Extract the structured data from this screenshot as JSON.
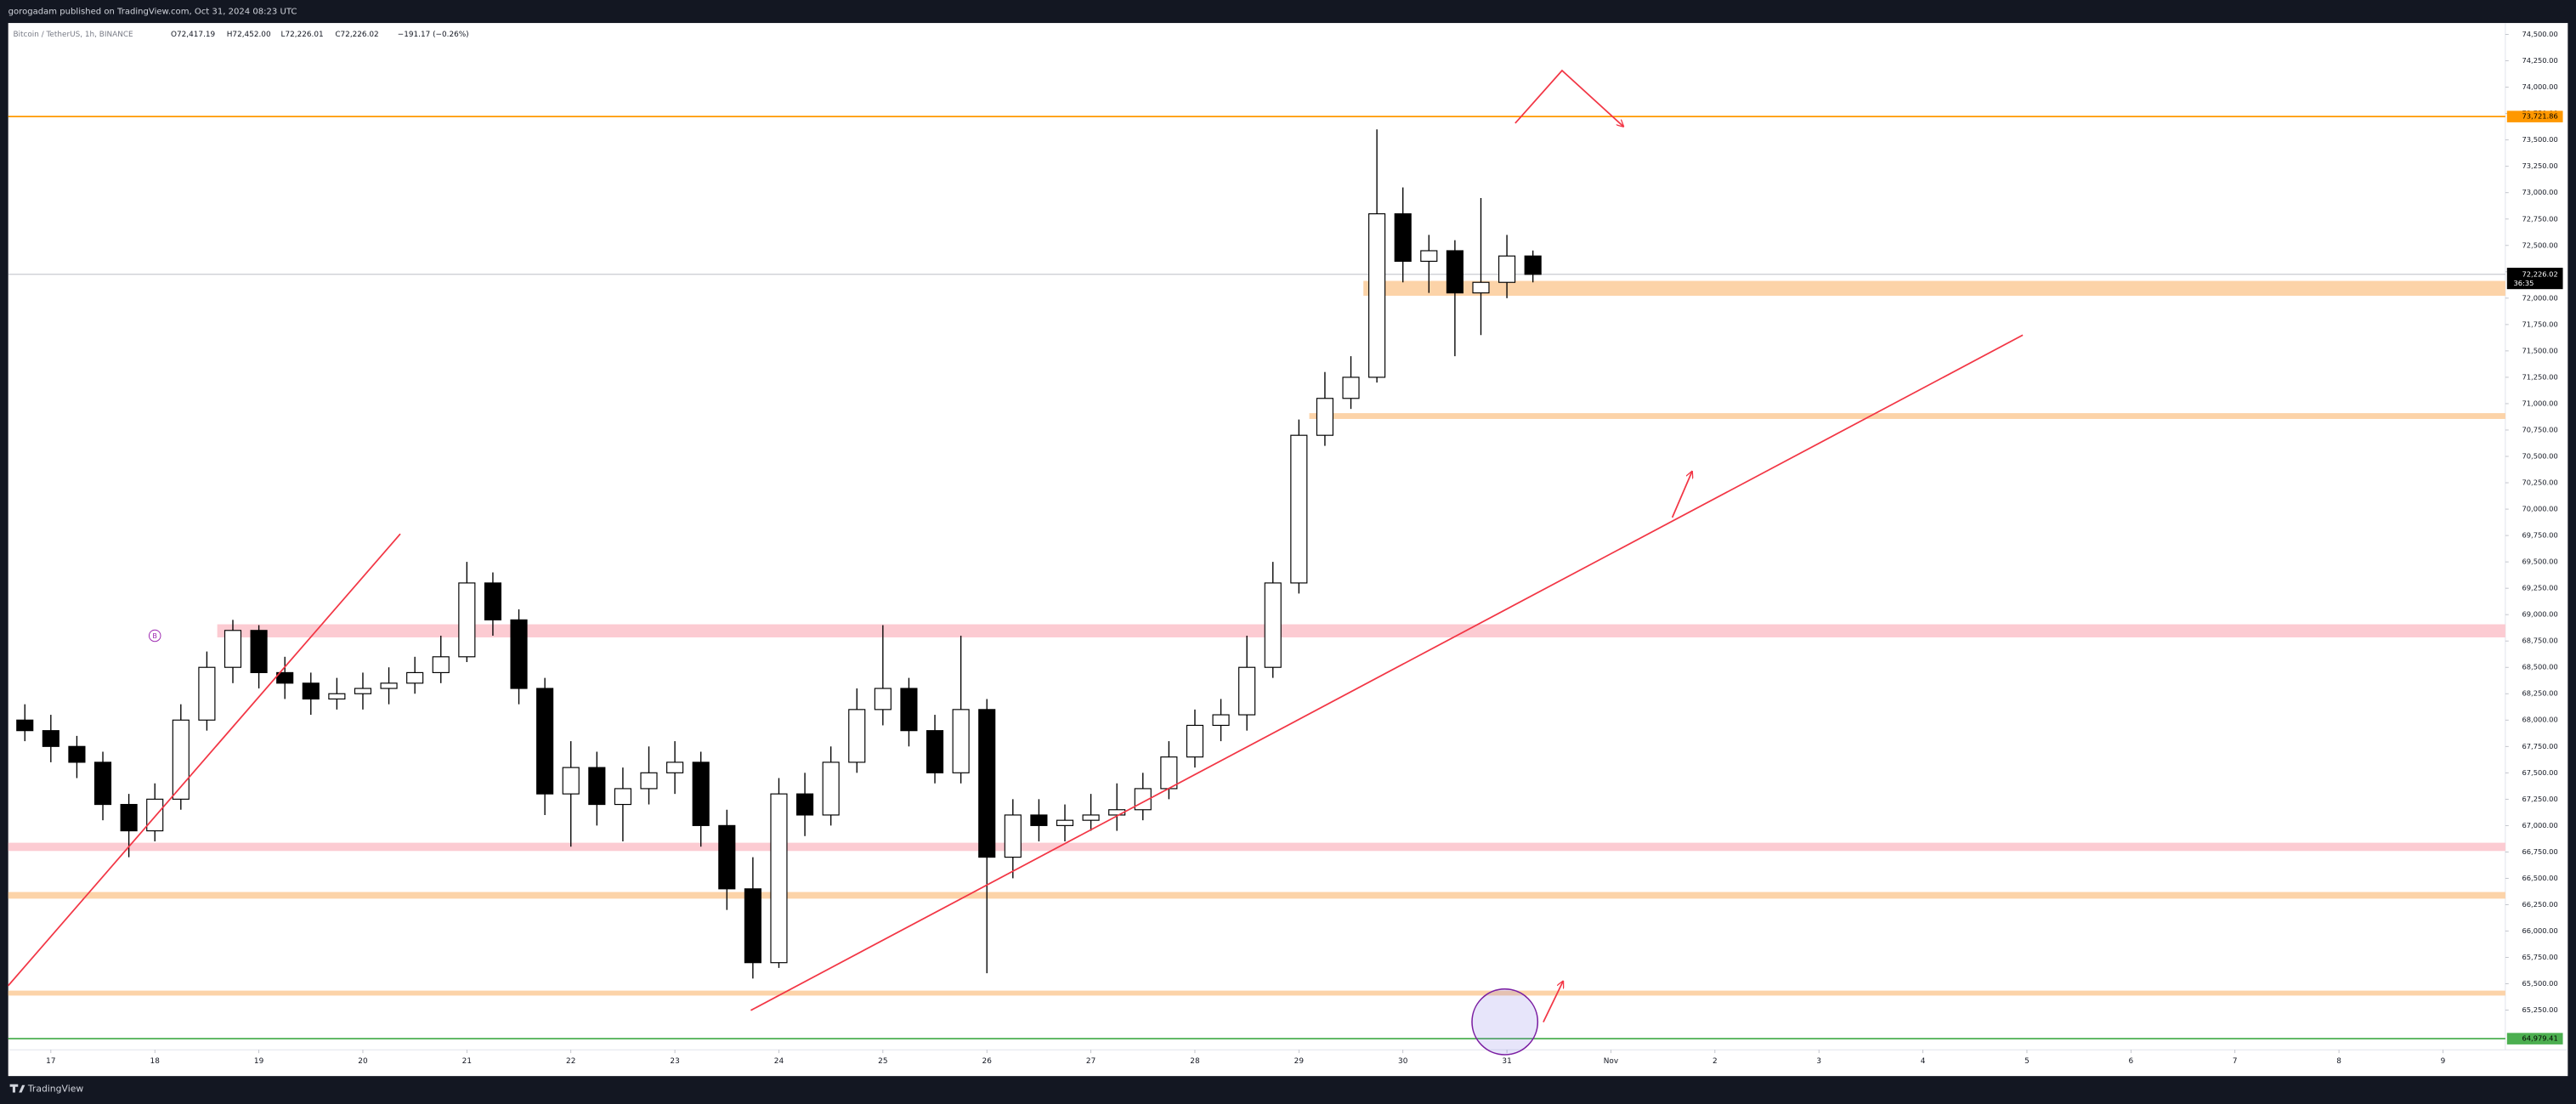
{
  "chart_data": {
    "type": "candlestick",
    "publisher": "gorogadam published on TradingView.com, Oct 31, 2024 08:23 UTC",
    "title": "Bitcoin / TetherUS, 1h, BINANCE",
    "ohlc_header": [
      "O72,417.19",
      "H72,452.00",
      "L72,226.01",
      "C72,226.02",
      "−191.17 (−0.26%)"
    ],
    "branding": "TradingView",
    "marker": {
      "label": "B",
      "x": 18.0,
      "y": 68800
    },
    "x": [
      16.75,
      17,
      17.25,
      17.5,
      17.75,
      18,
      18.25,
      18.5,
      18.75,
      19,
      19.25,
      19.5,
      19.75,
      20,
      20.25,
      20.5,
      20.75,
      21,
      21.25,
      21.5,
      21.75,
      22,
      22.25,
      22.5,
      22.75,
      23,
      23.25,
      23.5,
      23.75,
      24,
      24.25,
      24.5,
      24.75,
      25,
      25.25,
      25.5,
      25.75,
      26,
      26.25,
      26.5,
      26.75,
      27,
      27.25,
      27.5,
      27.75,
      28,
      28.25,
      28.5,
      28.75,
      29,
      29.25,
      29.5,
      29.75,
      30,
      30.25,
      30.5,
      30.75,
      31,
      31.25
    ],
    "open": [
      68000,
      67900,
      67750,
      67600,
      67200,
      66950,
      67250,
      68000,
      68500,
      68850,
      68450,
      68350,
      68200,
      68250,
      68300,
      68350,
      68450,
      68600,
      69300,
      68950,
      68300,
      67300,
      67550,
      67200,
      67350,
      67500,
      67600,
      67000,
      66400,
      65700,
      67300,
      67100,
      67600,
      68100,
      68300,
      67900,
      67500,
      68100,
      66700,
      67100,
      67000,
      67050,
      67100,
      67150,
      67350,
      67650,
      67950,
      68050,
      68500,
      69300,
      70700,
      71050,
      71250,
      72800,
      72350,
      72450,
      72050,
      72150,
      72400
    ],
    "high": [
      68150,
      68050,
      67850,
      67700,
      67300,
      67400,
      68150,
      68650,
      68950,
      68900,
      68600,
      68450,
      68400,
      68450,
      68500,
      68600,
      68800,
      69500,
      69400,
      69050,
      68400,
      67800,
      67700,
      67550,
      67750,
      67800,
      67700,
      67150,
      66700,
      67450,
      67500,
      67750,
      68300,
      68900,
      68400,
      68050,
      68800,
      68200,
      67250,
      67250,
      67200,
      67300,
      67400,
      67500,
      67800,
      68100,
      68200,
      68800,
      69500,
      70850,
      71300,
      71450,
      73600,
      73050,
      72600,
      72550,
      72950,
      72600,
      72452
    ],
    "low": [
      67800,
      67600,
      67450,
      67050,
      66700,
      66850,
      67150,
      67900,
      68350,
      68300,
      68200,
      68050,
      68100,
      68100,
      68150,
      68250,
      68350,
      68550,
      68800,
      68150,
      67100,
      66800,
      67000,
      66850,
      67200,
      67300,
      66800,
      66200,
      65550,
      65650,
      66900,
      67000,
      67500,
      67950,
      67750,
      67400,
      67400,
      65600,
      66500,
      66850,
      66850,
      66950,
      66950,
      67050,
      67250,
      67550,
      67800,
      67900,
      68400,
      69200,
      70600,
      70950,
      71200,
      72150,
      72050,
      71450,
      71650,
      72000,
      72150
    ],
    "close": [
      67900,
      67750,
      67600,
      67200,
      66950,
      67250,
      68000,
      68500,
      68850,
      68450,
      68350,
      68200,
      68250,
      68300,
      68350,
      68450,
      68600,
      69300,
      68950,
      68300,
      67300,
      67550,
      67200,
      67350,
      67500,
      67600,
      67000,
      66400,
      65700,
      67300,
      67100,
      67600,
      68100,
      68300,
      67900,
      67500,
      68100,
      66700,
      67100,
      67000,
      67050,
      67100,
      67150,
      67350,
      67650,
      67950,
      68050,
      68500,
      69300,
      70700,
      71050,
      71250,
      72800,
      72350,
      72450,
      72050,
      72150,
      72400,
      72226
    ],
    "up_color": "#ffffff",
    "down_color": "#000000",
    "wick_color": "#000000",
    "xlim": [
      16.59,
      40.6
    ],
    "xticks": [
      17,
      18,
      19,
      20,
      21,
      22,
      23,
      24,
      25,
      26,
      27,
      28,
      29,
      30,
      31,
      {
        "value": 32,
        "label": "Nov"
      },
      {
        "value": 33,
        "label": "2"
      },
      {
        "value": 34,
        "label": "3"
      },
      {
        "value": 35,
        "label": "4"
      },
      {
        "value": 36,
        "label": "5"
      },
      {
        "value": 37,
        "label": "6"
      },
      {
        "value": 38,
        "label": "7"
      },
      {
        "value": 39,
        "label": "8"
      },
      {
        "value": 40,
        "label": "9"
      }
    ],
    "ylim": [
      64874,
      74609
    ],
    "yticks": [
      {
        "value": 65250,
        "label": "65,250.00"
      },
      {
        "value": 65500,
        "label": "65,500.00"
      },
      {
        "value": 65750,
        "label": "65,750.00"
      },
      {
        "value": 66000,
        "label": "66,000.00"
      },
      {
        "value": 66250,
        "label": "66,250.00"
      },
      {
        "value": 66500,
        "label": "66,500.00"
      },
      {
        "value": 66750,
        "label": "66,750.00"
      },
      {
        "value": 67000,
        "label": "67,000.00"
      },
      {
        "value": 67250,
        "label": "67,250.00"
      },
      {
        "value": 67500,
        "label": "67,500.00"
      },
      {
        "value": 67750,
        "label": "67,750.00"
      },
      {
        "value": 68000,
        "label": "68,000.00"
      },
      {
        "value": 68250,
        "label": "68,250.00"
      },
      {
        "value": 68500,
        "label": "68,500.00"
      },
      {
        "value": 68750,
        "label": "68,750.00"
      },
      {
        "value": 69000,
        "label": "69,000.00"
      },
      {
        "value": 69250,
        "label": "69,250.00"
      },
      {
        "value": 69500,
        "label": "69,500.00"
      },
      {
        "value": 69750,
        "label": "69,750.00"
      },
      {
        "value": 70000,
        "label": "70,000.00"
      },
      {
        "value": 70250,
        "label": "70,250.00"
      },
      {
        "value": 70500,
        "label": "70,500.00"
      },
      {
        "value": 70750,
        "label": "70,750.00"
      },
      {
        "value": 71000,
        "label": "71,000.00"
      },
      {
        "value": 71250,
        "label": "71,250.00"
      },
      {
        "value": 71500,
        "label": "71,500.00"
      },
      {
        "value": 71750,
        "label": "71,750.00"
      },
      {
        "value": 72000,
        "label": "72,000.00"
      },
      {
        "value": 72250,
        "label": "72,250.00"
      },
      {
        "value": 72500,
        "label": "72,500.00"
      },
      {
        "value": 72750,
        "label": "72,750.00"
      },
      {
        "value": 73000,
        "label": "73,000.00"
      },
      {
        "value": 73250,
        "label": "73,250.00"
      },
      {
        "value": 73500,
        "label": "73,500.00"
      },
      {
        "value": 73750,
        "label": "73,750.00"
      },
      {
        "value": 74000,
        "label": "74,000.00"
      },
      {
        "value": 74250,
        "label": "74,250.00"
      },
      {
        "value": 74500,
        "label": "74,500.00"
      }
    ],
    "price_lines": [
      {
        "value": 73721.86,
        "label": "73,721.86",
        "color": "#ff9800"
      },
      {
        "value": 64979.41,
        "label": "64,979.41",
        "color": "#4caf50"
      }
    ],
    "last_price": {
      "value": 72226.02,
      "label": "72,226.02",
      "countdown": "36:35",
      "color": "#b2b5be"
    },
    "zones": [
      {
        "from": 29.62,
        "low": 72023,
        "high": 72164,
        "color": "#fcd3a8"
      },
      {
        "from": 29.1,
        "low": 70855,
        "high": 70910,
        "color": "#fcd3a8"
      },
      {
        "from": 18.6,
        "low": 68784,
        "high": 68908,
        "color": "#fccbd2"
      },
      {
        "from": 16.59,
        "low": 66759,
        "high": 66837,
        "color": "#fccbd2"
      },
      {
        "from": 16.59,
        "low": 66307,
        "high": 66370,
        "color": "#fcd3a8"
      },
      {
        "from": 16.59,
        "low": 65388,
        "high": 65435,
        "color": "#fcd3a8"
      }
    ],
    "trendlines": [
      {
        "x": [
          16.59,
          20.36
        ],
        "y": [
          65482,
          69765
        ],
        "color": "#f23645"
      },
      {
        "x": [
          23.73,
          35.96
        ],
        "y": [
          65248,
          71650
        ],
        "color": "#f23645"
      },
      {
        "x": [
          31.08,
          31.53,
          32.12
        ],
        "y": [
          73659,
          74158,
          73628
        ],
        "color": "#f23645"
      },
      {
        "x": [
          32.59,
          32.78
        ],
        "y": [
          69921,
          70357
        ],
        "color": "#f23645"
      },
      {
        "x": [
          31.35,
          31.54
        ],
        "y": [
          65137,
          65524
        ],
        "color": "#f23645"
      }
    ]
  }
}
